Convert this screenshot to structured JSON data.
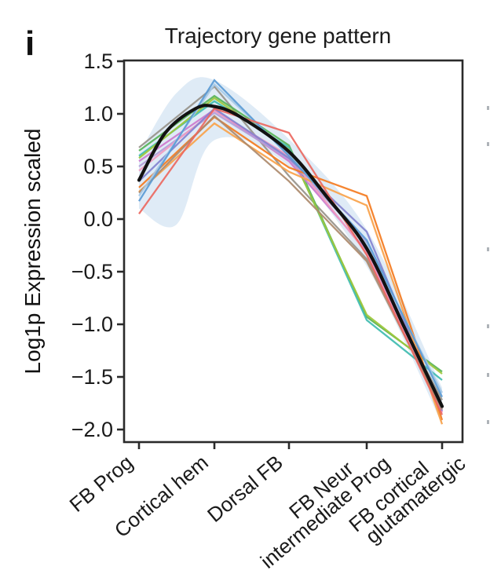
{
  "figure": {
    "panel_label": "i"
  },
  "chart_data": {
    "type": "line",
    "title": "Trajectory gene pattern",
    "ylabel": "Log1p Expression scaled",
    "xlabel": "",
    "grid": false,
    "legend": "none",
    "categories": [
      "FB Prog",
      "Cortical hem",
      "Dorsal FB",
      "FB Neur intermediate Prog",
      "FB cortical glutamatergic"
    ],
    "category_label_lines": [
      [
        "FB Prog"
      ],
      [
        "Cortical hem"
      ],
      [
        "Dorsal FB"
      ],
      [
        "FB Neur",
        "intermediate Prog"
      ],
      [
        "FB cortical",
        "glutamatergic"
      ]
    ],
    "ylim": [
      -2.14,
      1.5
    ],
    "yticks": [
      1.5,
      1.0,
      0.5,
      0.0,
      -0.5,
      -1.0,
      -1.5,
      -2.0
    ],
    "ytick_labels": [
      "1.5",
      "1.0",
      "0.5",
      "0.0",
      "−0.5",
      "−1.0",
      "−1.5",
      "−2.0"
    ],
    "axis_color": "#2a2a2a",
    "series": [
      {
        "name": "gene-line-gray",
        "color": "#97928a",
        "values": [
          0.68,
          1.26,
          0.41,
          -0.38,
          -1.72
        ]
      },
      {
        "name": "gene-line-green",
        "color": "#57b357",
        "values": [
          0.65,
          1.17,
          0.7,
          -0.93,
          -1.45
        ]
      },
      {
        "name": "gene-line-teal",
        "color": "#3fbcb0",
        "values": [
          0.6,
          1.12,
          0.68,
          -0.96,
          -1.53
        ]
      },
      {
        "name": "gene-line-yellow-green",
        "color": "#9dc73b",
        "values": [
          0.58,
          1.15,
          0.66,
          -0.91,
          -1.47
        ]
      },
      {
        "name": "gene-line-orchid",
        "color": "#cd78cd",
        "values": [
          0.55,
          1.04,
          0.55,
          -0.3,
          -1.83
        ]
      },
      {
        "name": "gene-line-lavender",
        "color": "#b39dd8",
        "values": [
          0.5,
          1.01,
          0.57,
          -0.22,
          -1.8
        ]
      },
      {
        "name": "gene-line-pink",
        "color": "#f09ac0",
        "values": [
          0.46,
          1.03,
          0.6,
          -0.32,
          -1.84
        ]
      },
      {
        "name": "gene-line-periwinkle",
        "color": "#8282cf",
        "values": [
          0.36,
          1.05,
          0.58,
          -0.12,
          -1.82
        ]
      },
      {
        "name": "gene-line-orange",
        "color": "#f47b20",
        "values": [
          0.3,
          0.97,
          0.49,
          0.22,
          -1.91
        ]
      },
      {
        "name": "gene-line-light-orange",
        "color": "#f9a24a",
        "values": [
          0.26,
          0.91,
          0.45,
          0.13,
          -1.95
        ]
      },
      {
        "name": "gene-line-brown",
        "color": "#ad8a6d",
        "values": [
          0.25,
          0.98,
          0.36,
          -0.4,
          -1.81
        ]
      },
      {
        "name": "gene-line-light-blue",
        "color": "#a6c9e6",
        "values": [
          0.22,
          1.28,
          0.62,
          -0.24,
          -1.65
        ]
      },
      {
        "name": "gene-line-steel-blue",
        "color": "#5b9bd5",
        "values": [
          0.17,
          1.32,
          0.6,
          -0.2,
          -1.69
        ]
      },
      {
        "name": "gene-line-salmon",
        "color": "#ec685f",
        "values": [
          0.05,
          1.05,
          0.82,
          -0.34,
          -1.86
        ]
      }
    ],
    "mean_line": {
      "name": "smoothed-mean-trajectory",
      "color": "#121212",
      "x": [
        0,
        0.35,
        0.75,
        1.0,
        1.35,
        2.0,
        2.5,
        3.0,
        3.5,
        4.0
      ],
      "values": [
        0.37,
        0.82,
        1.05,
        1.07,
        0.97,
        0.64,
        0.2,
        -0.28,
        -1.03,
        -1.78
      ]
    },
    "confidence_band": {
      "color": "#b9d3ea",
      "opacity": 0.45,
      "x": [
        0,
        0.5,
        1.0,
        2.0,
        3.0,
        4.0
      ],
      "upper": [
        0.62,
        1.2,
        1.32,
        0.76,
        -0.1,
        -1.6
      ],
      "lower": [
        0.1,
        -0.05,
        0.75,
        0.5,
        -0.45,
        -1.95
      ]
    },
    "edge_marks_y": [
      137,
      183,
      317,
      415,
      477,
      537
    ]
  }
}
